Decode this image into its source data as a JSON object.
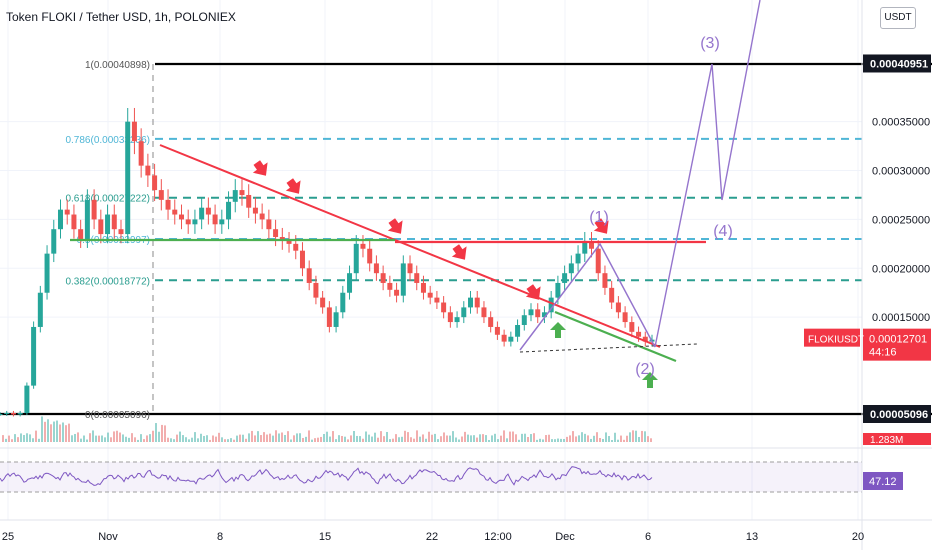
{
  "title": "Token FLOKI / Tether USD, 1h, POLONIEX",
  "currency_button": "USDT",
  "colors": {
    "fib_teal": "#2a9d8f",
    "fib_blue": "#4fb6d6",
    "fib_black": "#000000",
    "resistance": "#f23645",
    "support": "#4caf50",
    "wave": "#9575cd",
    "bull_candle": "#26a69a",
    "bear_candle": "#ef5350",
    "rsi": "#7e57c2"
  },
  "chart_data": {
    "type": "candlestick",
    "symbol": "FLOKIUSDT",
    "x_ticks": [
      "25",
      "Nov",
      "8",
      "15",
      "22",
      "12:00",
      "Dec",
      "6",
      "13",
      "20"
    ],
    "y_ticks": [
      "0.00035000",
      "0.00030000",
      "0.00025000",
      "0.00020000",
      "0.00015000"
    ],
    "ylim": [
      3.3e-05,
      0.00046
    ],
    "fib_levels": [
      {
        "label": "1(0.00040898)",
        "ratio": 1,
        "price": 0.00040898,
        "style": "black-solid"
      },
      {
        "label": "0.786(0.00033236)",
        "ratio": 0.786,
        "price": 0.00033236,
        "style": "blue-dashed"
      },
      {
        "label": "0.618(0.00027222)",
        "ratio": 0.618,
        "price": 0.00027222,
        "style": "teal-dashed"
      },
      {
        "label": "0.5(0.00022997)",
        "ratio": 0.5,
        "price": 0.00022997,
        "style": "blue-dashed"
      },
      {
        "label": "0.382(0.00018772)",
        "ratio": 0.382,
        "price": 0.00018772,
        "style": "teal-dashed"
      },
      {
        "label": "0(0.00005096)",
        "ratio": 0,
        "price": 5.096e-05,
        "style": "black-solid"
      }
    ],
    "price_tags": [
      {
        "label": "0.00040951",
        "price": 0.00040951,
        "style": "dark"
      },
      {
        "label": "0.00005096",
        "price": 5.096e-05,
        "style": "dark"
      },
      {
        "label": "0.00012701",
        "price": 0.00012701,
        "style": "red",
        "sublabel": "44:16"
      }
    ],
    "symbol_tag": "FLOKIUSDT",
    "volume_tag": "1.283M",
    "wave_labels": [
      "(3)",
      "(4)",
      "(1)",
      "(2)"
    ],
    "rsi": {
      "value_label": "47.12",
      "value": 47.12,
      "upper": 70,
      "lower": 30
    },
    "series_close": [
      5.1e-05,
      5.2e-05,
      5.05e-05,
      5.2e-05,
      8e-05,
      0.00014,
      0.000175,
      0.000215,
      0.00024,
      0.00026,
      0.000255,
      0.00024,
      0.00023,
      0.00027,
      0.00025,
      0.000235,
      0.000255,
      0.00024,
      0.000235,
      0.00035,
      0.00033,
      0.000305,
      0.000295,
      0.00028,
      0.00027,
      0.00026,
      0.000255,
      0.00025,
      0.000245,
      0.00025,
      0.000262,
      0.000255,
      0.000245,
      0.00025,
      0.000268,
      0.00028,
      0.000275,
      0.000262,
      0.000256,
      0.00025,
      0.00024,
      0.000232,
      0.000228,
      0.000225,
      0.000218,
      0.0002,
      0.000185,
      0.00017,
      0.00016,
      0.00014,
      0.000155,
      0.000175,
      0.000195,
      0.000225,
      0.00022,
      0.000205,
      0.000195,
      0.000185,
      0.000178,
      0.000172,
      0.000205,
      0.000195,
      0.000185,
      0.000175,
      0.00017,
      0.000165,
      0.000155,
      0.000145,
      0.00015,
      0.00016,
      0.00017,
      0.00016,
      0.00015,
      0.00014,
      0.000132,
      0.000125,
      0.00013,
      0.000142,
      0.000152,
      0.000158,
      0.00015,
      0.000155,
      0.00017,
      0.000185,
      0.000195,
      0.000205,
      0.000215,
      0.000228,
      0.00022,
      0.000195,
      0.00018,
      0.000165,
      0.000155,
      0.000145,
      0.000135,
      0.00013,
      0.000125,
      0.000127
    ]
  }
}
